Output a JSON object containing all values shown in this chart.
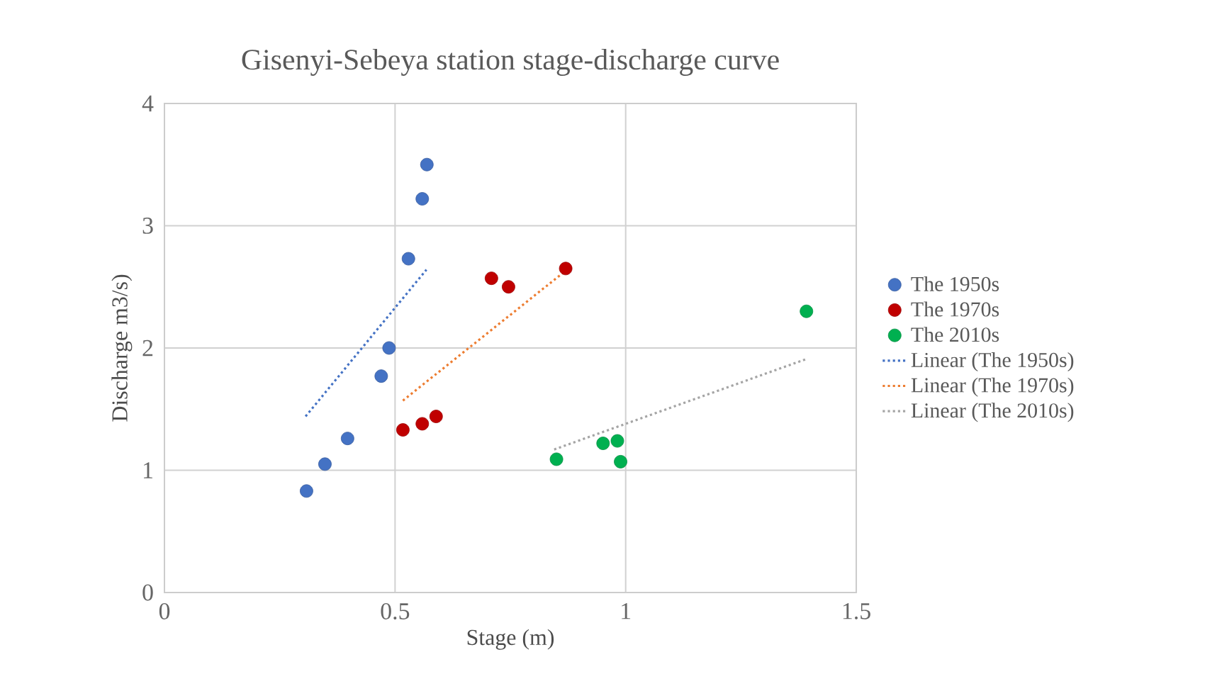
{
  "chart_data": {
    "type": "scatter",
    "title": "Gisenyi-Sebeya station stage-discharge curve",
    "xlabel": "Stage (m)",
    "ylabel": "Discharge m3/s)",
    "xlim": [
      0,
      1.5
    ],
    "xticks": [
      0,
      0.5,
      1,
      1.5
    ],
    "ylim": [
      0,
      4
    ],
    "yticks": [
      0,
      1,
      2,
      3,
      4
    ],
    "grid": true,
    "legend": "right",
    "series": [
      {
        "name": "The 1950s",
        "marker": "circle",
        "color": "#4472c4",
        "x": [
          0.308,
          0.348,
          0.397,
          0.47,
          0.487,
          0.529,
          0.559,
          0.569
        ],
        "values": [
          0.83,
          1.05,
          1.26,
          1.77,
          2.0,
          2.73,
          3.22,
          3.5
        ]
      },
      {
        "name": "The 1970s",
        "marker": "circle",
        "color": "#c00000",
        "x": [
          0.517,
          0.559,
          0.589,
          0.709,
          0.746,
          0.87
        ],
        "values": [
          1.33,
          1.38,
          1.44,
          2.57,
          2.5,
          2.65
        ]
      },
      {
        "name": "The 2010s",
        "marker": "circle",
        "color": "#00b050",
        "x": [
          0.85,
          0.951,
          0.982,
          0.989,
          1.392
        ],
        "values": [
          1.09,
          1.22,
          1.24,
          1.07,
          2.3
        ]
      },
      {
        "name": "Linear (The 1950s)",
        "type": "line",
        "marker": "none",
        "line_style": "dotted",
        "color": "#4472c4",
        "x": [
          0.306,
          0.568
        ],
        "values": [
          1.44,
          2.64
        ]
      },
      {
        "name": "Linear (The 1970s)",
        "type": "line",
        "marker": "none",
        "line_style": "dotted",
        "color": "#ed7d31",
        "x": [
          0.517,
          0.866
        ],
        "values": [
          1.57,
          2.62
        ]
      },
      {
        "name": "Linear (The 2010s)",
        "type": "line",
        "marker": "none",
        "line_style": "dotted",
        "color": "#a5a5a5",
        "x": [
          0.845,
          1.392
        ],
        "values": [
          1.17,
          1.91
        ]
      }
    ]
  }
}
